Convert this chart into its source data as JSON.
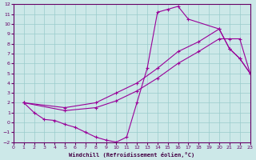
{
  "bg_color": "#cce8e8",
  "grid_color": "#99cccc",
  "line_color": "#990099",
  "xlim": [
    0,
    23
  ],
  "ylim": [
    -2,
    12
  ],
  "xticks": [
    0,
    1,
    2,
    3,
    4,
    5,
    6,
    7,
    8,
    9,
    10,
    11,
    12,
    13,
    14,
    15,
    16,
    17,
    18,
    19,
    20,
    21,
    22,
    23
  ],
  "yticks": [
    -2,
    -1,
    0,
    1,
    2,
    3,
    4,
    5,
    6,
    7,
    8,
    9,
    10,
    11,
    12
  ],
  "xlabel": "Windchill (Refroidissement éolien,°C)",
  "curve1_x": [
    1,
    2,
    3,
    4,
    5,
    6,
    7,
    8,
    9,
    10,
    11,
    12,
    13,
    14,
    15,
    16,
    17,
    20,
    21,
    22,
    23
  ],
  "curve1_y": [
    2,
    1,
    0.3,
    0.2,
    -0.2,
    -0.5,
    -1.0,
    -1.5,
    -1.8,
    -2,
    -1.5,
    2.0,
    5.5,
    11.2,
    11.5,
    11.8,
    10.5,
    9.5,
    7.5,
    6.5,
    5.0
  ],
  "curve2_x": [
    1,
    5,
    8,
    10,
    12,
    14,
    16,
    18,
    20,
    21,
    22,
    23
  ],
  "curve2_y": [
    2,
    1.5,
    2,
    3,
    4,
    5.5,
    7.2,
    8.2,
    9.5,
    7.5,
    6.5,
    5.0
  ],
  "curve3_x": [
    1,
    5,
    8,
    10,
    12,
    14,
    16,
    18,
    20,
    21,
    22,
    23
  ],
  "curve3_y": [
    2,
    1.2,
    1.5,
    2.2,
    3.2,
    4.5,
    6.0,
    7.2,
    8.5,
    8.5,
    8.5,
    5.0
  ]
}
